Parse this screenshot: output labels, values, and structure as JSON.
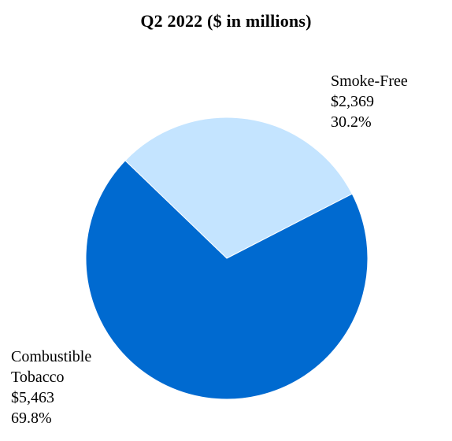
{
  "chart_data": {
    "type": "pie",
    "title": "Q2 2022 ($ in millions)",
    "slices": [
      {
        "name": "Smoke-Free",
        "value": 2369,
        "value_label": "$2,369",
        "percent_label": "30.2%",
        "color": "#c4e4ff"
      },
      {
        "name_lines": [
          "Combustible",
          "Tobacco"
        ],
        "value": 5463,
        "value_label": "$5,463",
        "percent_label": "69.8%",
        "color": "#006ad0"
      }
    ]
  }
}
